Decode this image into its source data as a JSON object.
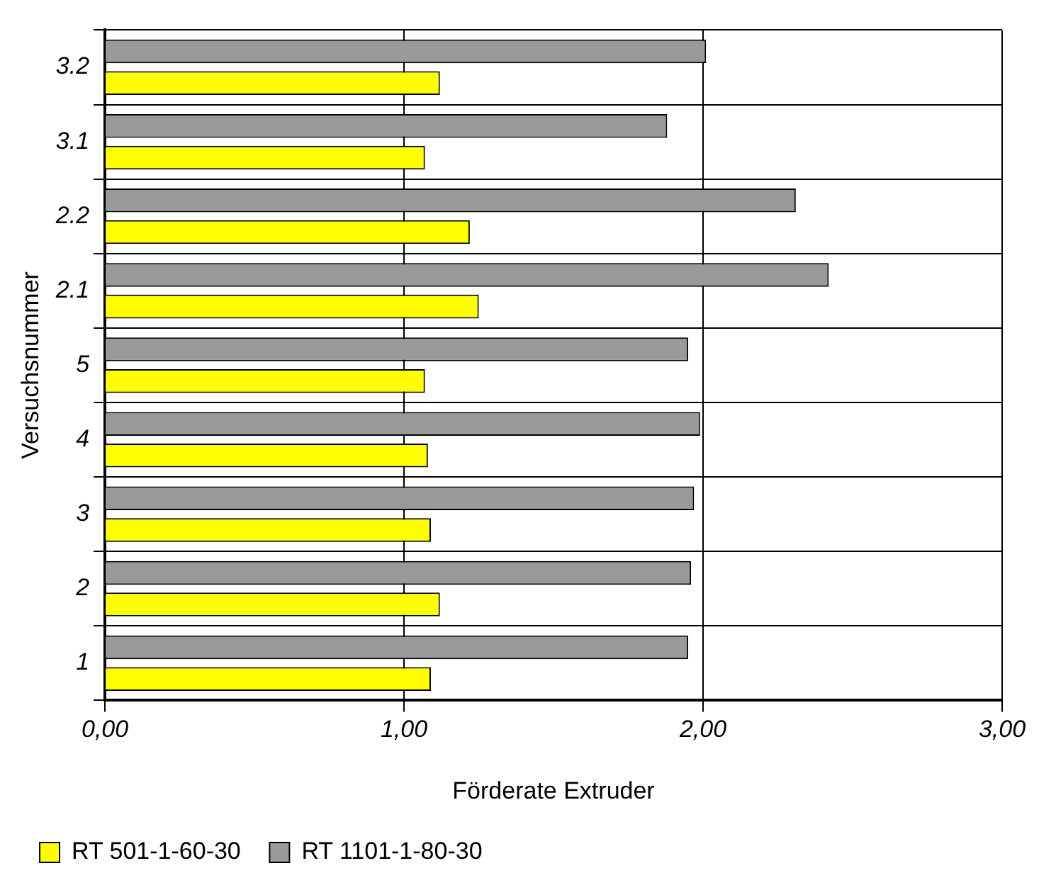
{
  "chart_data": {
    "type": "bar",
    "orientation": "horizontal",
    "xlabel": "Förderate Extruder",
    "ylabel": "Versuchsnummer",
    "categories": [
      "3.2",
      "3.1",
      "2.2",
      "2.1",
      "5",
      "4",
      "3",
      "2",
      "1"
    ],
    "series": [
      {
        "name": "RT 501-1-60-30",
        "color": "#ffff00",
        "values": [
          1.12,
          1.07,
          1.22,
          1.25,
          1.07,
          1.08,
          1.09,
          1.12,
          1.09
        ]
      },
      {
        "name": "RT 1101-1-80-30",
        "color": "#999999",
        "values": [
          2.01,
          1.88,
          2.31,
          2.42,
          1.95,
          1.99,
          1.97,
          1.96,
          1.95
        ]
      }
    ],
    "xlim": [
      0,
      3
    ],
    "xticks": [
      {
        "value": 0,
        "label": "0,00"
      },
      {
        "value": 1,
        "label": "1,00"
      },
      {
        "value": 2,
        "label": "2,00"
      },
      {
        "value": 3,
        "label": "3,00"
      }
    ],
    "grid": true,
    "legend": "bottom"
  }
}
